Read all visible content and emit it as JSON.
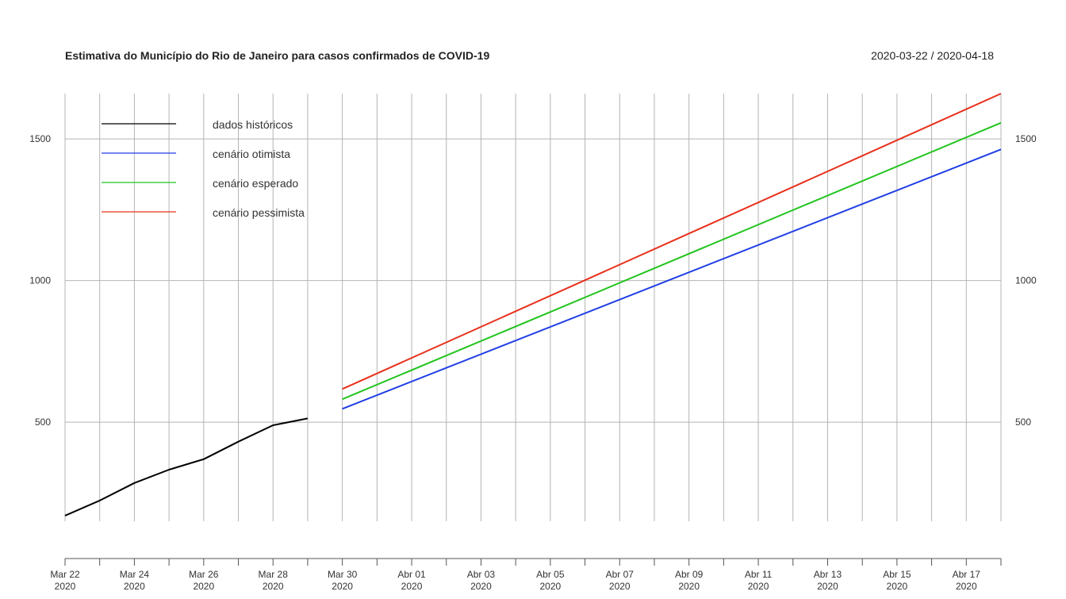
{
  "header": {
    "title": "Estimativa do Município do Rio de Janeiro para casos confirmados de COVID-19",
    "date_range": "2020-03-22 / 2020-04-18"
  },
  "chart_data": {
    "type": "line",
    "title": "Estimativa do Município do Rio de Janeiro para casos confirmados de COVID-19",
    "xlabel": "",
    "ylabel": "",
    "x_range": [
      "2020-03-22",
      "2020-04-18"
    ],
    "ylim": [
      150,
      1660
    ],
    "y_ticks": [
      500,
      1000,
      1500
    ],
    "grid": true,
    "legend_position": "top-left",
    "x_ticks": [
      {
        "date": "2020-03-22",
        "label": "Mar 22",
        "year": "2020"
      },
      {
        "date": "2020-03-24",
        "label": "Mar 24",
        "year": "2020"
      },
      {
        "date": "2020-03-26",
        "label": "Mar 26",
        "year": "2020"
      },
      {
        "date": "2020-03-28",
        "label": "Mar 28",
        "year": "2020"
      },
      {
        "date": "2020-03-30",
        "label": "Mar 30",
        "year": "2020"
      },
      {
        "date": "2020-04-01",
        "label": "Abr 01",
        "year": "2020"
      },
      {
        "date": "2020-04-03",
        "label": "Abr 03",
        "year": "2020"
      },
      {
        "date": "2020-04-05",
        "label": "Abr 05",
        "year": "2020"
      },
      {
        "date": "2020-04-07",
        "label": "Abr 07",
        "year": "2020"
      },
      {
        "date": "2020-04-09",
        "label": "Abr 09",
        "year": "2020"
      },
      {
        "date": "2020-04-11",
        "label": "Abr 11",
        "year": "2020"
      },
      {
        "date": "2020-04-13",
        "label": "Abr 13",
        "year": "2020"
      },
      {
        "date": "2020-04-15",
        "label": "Abr 15",
        "year": "2020"
      },
      {
        "date": "2020-04-17",
        "label": "Abr 17",
        "year": "2020"
      }
    ],
    "series": [
      {
        "name": "dados históricos",
        "color": "#000000",
        "x": [
          "2020-03-22",
          "2020-03-23",
          "2020-03-24",
          "2020-03-25",
          "2020-03-26",
          "2020-03-27",
          "2020-03-28",
          "2020-03-29"
        ],
        "y": [
          170,
          223,
          285,
          332,
          369,
          431,
          489,
          513
        ]
      },
      {
        "name": "cenário otimista",
        "color": "#1f3fe6",
        "x": [
          "2020-03-30",
          "2020-04-18"
        ],
        "y": [
          547,
          1463
        ]
      },
      {
        "name": "cenário esperado",
        "color": "#22c41e",
        "x": [
          "2020-03-30",
          "2020-04-18"
        ],
        "y": [
          581,
          1557
        ]
      },
      {
        "name": "cenário pessimista",
        "color": "#e8301c",
        "x": [
          "2020-03-30",
          "2020-04-18"
        ],
        "y": [
          617,
          1660
        ]
      }
    ]
  }
}
